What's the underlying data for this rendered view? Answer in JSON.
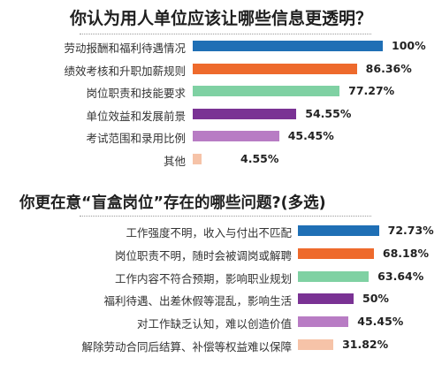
{
  "chart_data": [
    {
      "type": "bar",
      "title": "你认为用人单位应该让哪些信息更透明？",
      "categories": [
        "劳动报酬和福利待遇情况",
        "绩效考核和升职加薪规则",
        "岗位职责和技能要求",
        "单位效益和发展前景",
        "考试范围和录用比例",
        "其他"
      ],
      "values": [
        100,
        86.36,
        77.27,
        54.55,
        45.45,
        4.55
      ],
      "labels": [
        "100%",
        "86.36%",
        "77.27%",
        "54.55%",
        "45.45%",
        "4.55%"
      ],
      "colors": [
        "#1f6fb5",
        "#ee6a2c",
        "#7fd1a3",
        "#7a3294",
        "#b87cc4",
        "#f6c3a8"
      ],
      "xlim": [
        0,
        100
      ]
    },
    {
      "type": "bar",
      "title": "你更在意“盲盒岗位”存在的哪些问题?(多选)",
      "categories": [
        "工作强度不明，收入与付出不匹配",
        "岗位职责不明，随时会被调岗或解聘",
        "工作内容不符合预期，影响职业规划",
        "福利待遇、出差休假等混乱，影响生活",
        "对工作缺乏认知，难以创造价值",
        "解除劳动合同后结算、补偿等权益难以保障"
      ],
      "values": [
        72.73,
        68.18,
        63.64,
        50,
        45.45,
        31.82
      ],
      "labels": [
        "72.73%",
        "68.18%",
        "63.64%",
        "50%",
        "45.45%",
        "31.82%"
      ],
      "colors": [
        "#1f6fb5",
        "#ee6a2c",
        "#7fd1a3",
        "#7a3294",
        "#b87cc4",
        "#f6c3a8"
      ],
      "xlim": [
        0,
        100
      ]
    }
  ]
}
